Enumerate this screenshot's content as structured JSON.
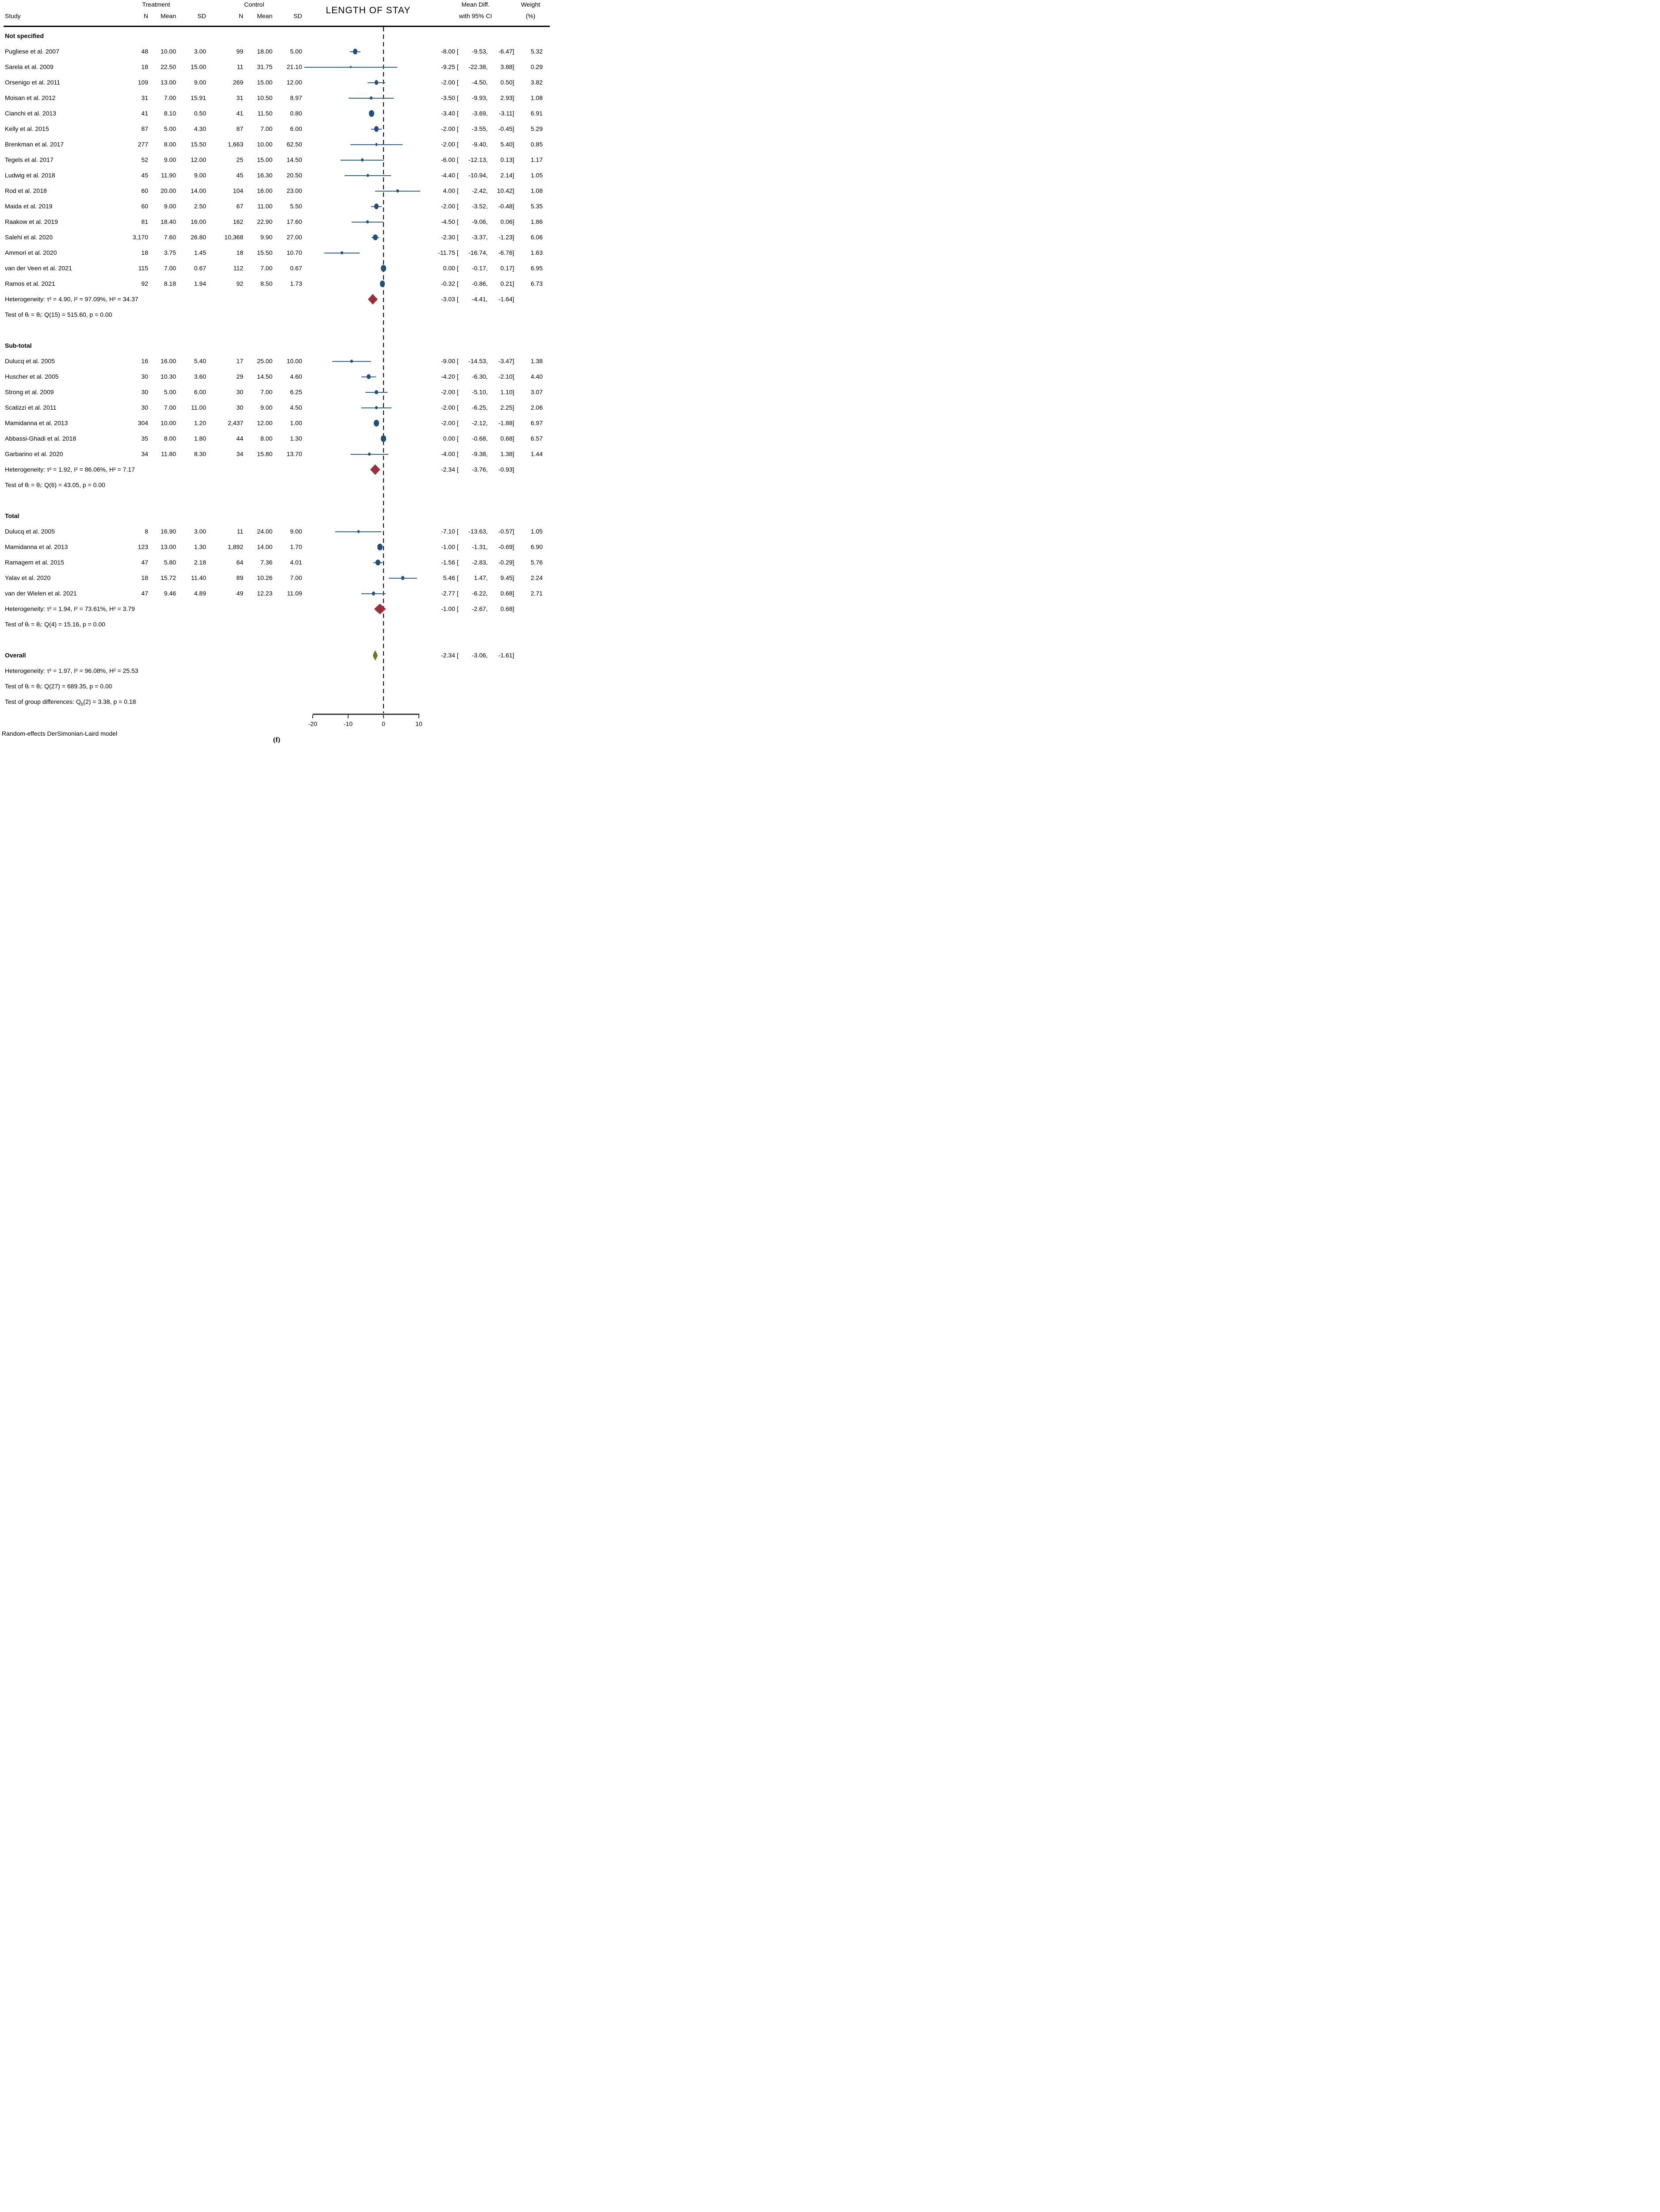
{
  "header": {
    "study": "Study",
    "treatment": "Treatment",
    "control": "Control",
    "n": "N",
    "mean": "Mean",
    "sd": "SD",
    "plot_title": "LENGTH OF STAY",
    "meandiff_line1": "Mean Diff.",
    "meandiff_line2": "with 95% CI",
    "weight_line1": "Weight",
    "weight_line2": "(%)"
  },
  "footer": {
    "model": "Random-effects DerSimonian-Laird model",
    "caption": "(f)"
  },
  "colors": {
    "marker_blue": "#20507a",
    "ci_line": "#2f6391",
    "diamond_red": "#9d2f3b",
    "diamond_green": "#5e8028",
    "axis": "#3c3c3c",
    "text": "#000000"
  },
  "chart_data": {
    "type": "forest",
    "title": "LENGTH OF STAY",
    "xlabel": "",
    "xlim": [
      -20,
      10
    ],
    "axis_ticks": [
      "-20",
      "-10",
      "0",
      "10"
    ],
    "zero_line": 0,
    "sections": [
      {
        "label": "Not specified",
        "studies": [
          {
            "name": "Pugliese et al. 2007",
            "tn": "48",
            "tmean": "10.00",
            "tsd": "3.00",
            "cn": "99",
            "cmean": "18.00",
            "csd": "5.00",
            "est": "-8.00",
            "lo": "-9.53",
            "hi": "-6.47",
            "w": "5.32"
          },
          {
            "name": "Sarela et al. 2009",
            "tn": "18",
            "tmean": "22.50",
            "tsd": "15.00",
            "cn": "11",
            "cmean": "31.75",
            "csd": "21.10",
            "est": "-9.25",
            "lo": "-22.38",
            "hi": "3.88",
            "w": "0.29"
          },
          {
            "name": "Orsenigo et al. 2011",
            "tn": "109",
            "tmean": "13.00",
            "tsd": "9.00",
            "cn": "269",
            "cmean": "15.00",
            "csd": "12.00",
            "est": "-2.00",
            "lo": "-4.50",
            "hi": "0.50",
            "w": "3.82"
          },
          {
            "name": "Moisan et al. 2012",
            "tn": "31",
            "tmean": "7.00",
            "tsd": "15.91",
            "cn": "31",
            "cmean": "10.50",
            "csd": "8.97",
            "est": "-3.50",
            "lo": "-9.93",
            "hi": "2.93",
            "w": "1.08"
          },
          {
            "name": "Cianchi et al. 2013",
            "tn": "41",
            "tmean": "8.10",
            "tsd": "0.50",
            "cn": "41",
            "cmean": "11.50",
            "csd": "0.80",
            "est": "-3.40",
            "lo": "-3.69",
            "hi": "-3.11",
            "w": "6.91"
          },
          {
            "name": "Kelly et al. 2015",
            "tn": "87",
            "tmean": "5.00",
            "tsd": "4.30",
            "cn": "87",
            "cmean": "7.00",
            "csd": "6.00",
            "est": "-2.00",
            "lo": "-3.55",
            "hi": "-0.45",
            "w": "5.29"
          },
          {
            "name": "Brenkman et al. 2017",
            "tn": "277",
            "tmean": "8.00",
            "tsd": "15.50",
            "cn": "1,663",
            "cmean": "10.00",
            "csd": "62.50",
            "est": "-2.00",
            "lo": "-9.40",
            "hi": "5.40",
            "w": "0.85"
          },
          {
            "name": "Tegels et al. 2017",
            "tn": "52",
            "tmean": "9.00",
            "tsd": "12.00",
            "cn": "25",
            "cmean": "15.00",
            "csd": "14.50",
            "est": "-6.00",
            "lo": "-12.13",
            "hi": "0.13",
            "w": "1.17"
          },
          {
            "name": "Ludwig et al. 2018",
            "tn": "45",
            "tmean": "11.90",
            "tsd": "9.00",
            "cn": "45",
            "cmean": "16.30",
            "csd": "20.50",
            "est": "-4.40",
            "lo": "-10.94",
            "hi": "2.14",
            "w": "1.05"
          },
          {
            "name": "Rod et al. 2018",
            "tn": "60",
            "tmean": "20.00",
            "tsd": "14.00",
            "cn": "104",
            "cmean": "16.00",
            "csd": "23.00",
            "est": "4.00",
            "lo": "-2.42",
            "hi": "10.42",
            "w": "1.08"
          },
          {
            "name": "Maida et al. 2019",
            "tn": "60",
            "tmean": "9.00",
            "tsd": "2.50",
            "cn": "67",
            "cmean": "11.00",
            "csd": "5.50",
            "est": "-2.00",
            "lo": "-3.52",
            "hi": "-0.48",
            "w": "5.35"
          },
          {
            "name": "Raakow et al. 2019",
            "tn": "81",
            "tmean": "18.40",
            "tsd": "16.00",
            "cn": "162",
            "cmean": "22.90",
            "csd": "17.60",
            "est": "-4.50",
            "lo": "-9.06",
            "hi": "0.06",
            "w": "1.86"
          },
          {
            "name": "Salehi et al. 2020",
            "tn": "3,170",
            "tmean": "7.60",
            "tsd": "26.80",
            "cn": "10,368",
            "cmean": "9.90",
            "csd": "27.00",
            "est": "-2.30",
            "lo": "-3.37",
            "hi": "-1.23",
            "w": "6.06"
          },
          {
            "name": "Ammori et al. 2020",
            "tn": "18",
            "tmean": "3.75",
            "tsd": "1.45",
            "cn": "18",
            "cmean": "15.50",
            "csd": "10.70",
            "est": "-11.75",
            "lo": "-16.74",
            "hi": "-6.76",
            "w": "1.63"
          },
          {
            "name": "van der Veen  et al. 2021",
            "tn": "115",
            "tmean": "7.00",
            "tsd": "0.67",
            "cn": "112",
            "cmean": "7.00",
            "csd": "0.67",
            "est": "0.00",
            "lo": "-0.17",
            "hi": "0.17",
            "w": "6.95"
          },
          {
            "name": "Ramos et al. 2021",
            "tn": "92",
            "tmean": "8.18",
            "tsd": "1.94",
            "cn": "92",
            "cmean": "8.50",
            "csd": "1.73",
            "est": "-0.32",
            "lo": "-0.86",
            "hi": "0.21",
            "w": "6.73"
          }
        ],
        "heterogeneity": {
          "text": "Heterogeneity: τ² = 4.90, I² = 97.09%, H² = 34.37",
          "est": "-3.03",
          "lo": "-4.41",
          "hi": "-1.64"
        },
        "test": "Test of θᵢ = θⱼ: Q(15) = 515.60, p = 0.00"
      },
      {
        "label": "Sub-total",
        "studies": [
          {
            "name": "Dulucq et al. 2005",
            "tn": "16",
            "tmean": "16.00",
            "tsd": "5.40",
            "cn": "17",
            "cmean": "25.00",
            "csd": "10.00",
            "est": "-9.00",
            "lo": "-14.53",
            "hi": "-3.47",
            "w": "1.38"
          },
          {
            "name": "Huscher et al. 2005",
            "tn": "30",
            "tmean": "10.30",
            "tsd": "3.60",
            "cn": "29",
            "cmean": "14.50",
            "csd": "4.60",
            "est": "-4.20",
            "lo": "-6.30",
            "hi": "-2.10",
            "w": "4.40"
          },
          {
            "name": "Strong et al. 2009",
            "tn": "30",
            "tmean": "5.00",
            "tsd": "6.00",
            "cn": "30",
            "cmean": "7.00",
            "csd": "6.25",
            "est": "-2.00",
            "lo": "-5.10",
            "hi": "1.10",
            "w": "3.07"
          },
          {
            "name": "Scatizzi et al. 2011",
            "tn": "30",
            "tmean": "7.00",
            "tsd": "11.00",
            "cn": "30",
            "cmean": "9.00",
            "csd": "4.50",
            "est": "-2.00",
            "lo": "-6.25",
            "hi": "2.25",
            "w": "2.06"
          },
          {
            "name": "Mamidanna et al. 2013",
            "tn": "304",
            "tmean": "10.00",
            "tsd": "1.20",
            "cn": "2,437",
            "cmean": "12.00",
            "csd": "1.00",
            "est": "-2.00",
            "lo": "-2.12",
            "hi": "-1.88",
            "w": "6.97"
          },
          {
            "name": "Abbassi-Ghadi et al. 2018",
            "tn": "35",
            "tmean": "8.00",
            "tsd": "1.80",
            "cn": "44",
            "cmean": "8.00",
            "csd": "1.30",
            "est": "0.00",
            "lo": "-0.68",
            "hi": "0.68",
            "w": "6.57"
          },
          {
            "name": "Garbarino et al. 2020",
            "tn": "34",
            "tmean": "11.80",
            "tsd": "8.30",
            "cn": "34",
            "cmean": "15.80",
            "csd": "13.70",
            "est": "-4.00",
            "lo": "-9.38",
            "hi": "1.38",
            "w": "1.44"
          }
        ],
        "heterogeneity": {
          "text": "Heterogeneity: τ² = 1.92, I² = 86.06%, H² = 7.17",
          "est": "-2.34",
          "lo": "-3.76",
          "hi": "-0.93"
        },
        "test": "Test of θᵢ = θⱼ: Q(6) = 43.05, p = 0.00"
      },
      {
        "label": "Total",
        "studies": [
          {
            "name": "Dulucq et al. 2005",
            "tn": "8",
            "tmean": "16.90",
            "tsd": "3.00",
            "cn": "11",
            "cmean": "24.00",
            "csd": "9.00",
            "est": "-7.10",
            "lo": "-13.63",
            "hi": "-0.57",
            "w": "1.05"
          },
          {
            "name": "Mamidanna et al. 2013",
            "tn": "123",
            "tmean": "13.00",
            "tsd": "1.30",
            "cn": "1,892",
            "cmean": "14.00",
            "csd": "1.70",
            "est": "-1.00",
            "lo": "-1.31",
            "hi": "-0.69",
            "w": "6.90"
          },
          {
            "name": "Ramagem et al. 2015",
            "tn": "47",
            "tmean": "5.80",
            "tsd": "2.18",
            "cn": "64",
            "cmean": "7.36",
            "csd": "4.01",
            "est": "-1.56",
            "lo": "-2.83",
            "hi": "-0.29",
            "w": "5.76"
          },
          {
            "name": "Yalav et al. 2020",
            "tn": "18",
            "tmean": "15.72",
            "tsd": "11.40",
            "cn": "89",
            "cmean": "10.26",
            "csd": "7.00",
            "est": "5.46",
            "lo": "1.47",
            "hi": "9.45",
            "w": "2.24"
          },
          {
            "name": "van der Wielen et al. 2021",
            "tn": "47",
            "tmean": "9.46",
            "tsd": "4.89",
            "cn": "49",
            "cmean": "12.23",
            "csd": "11.09",
            "est": "-2.77",
            "lo": "-6.22",
            "hi": "0.68",
            "w": "2.71"
          }
        ],
        "heterogeneity": {
          "text": "Heterogeneity: τ² = 1.94, I² = 73.61%, H² = 3.79",
          "est": "-1.00",
          "lo": "-2.67",
          "hi": "0.68"
        },
        "test": "Test of θᵢ = θⱼ: Q(4) = 15.16, p = 0.00"
      }
    ],
    "overall": {
      "label": "Overall",
      "est": "-2.34",
      "lo": "-3.06",
      "hi": "-1.61",
      "heterogeneity": "Heterogeneity: τ² = 1.97, I² = 96.08%, H² = 25.53",
      "test": "Test of θᵢ = θⱼ: Q(27) = 689.35, p = 0.00",
      "group_diff": "Test of group differences: Q~b~(2) = 3.38, p = 0.18"
    }
  }
}
